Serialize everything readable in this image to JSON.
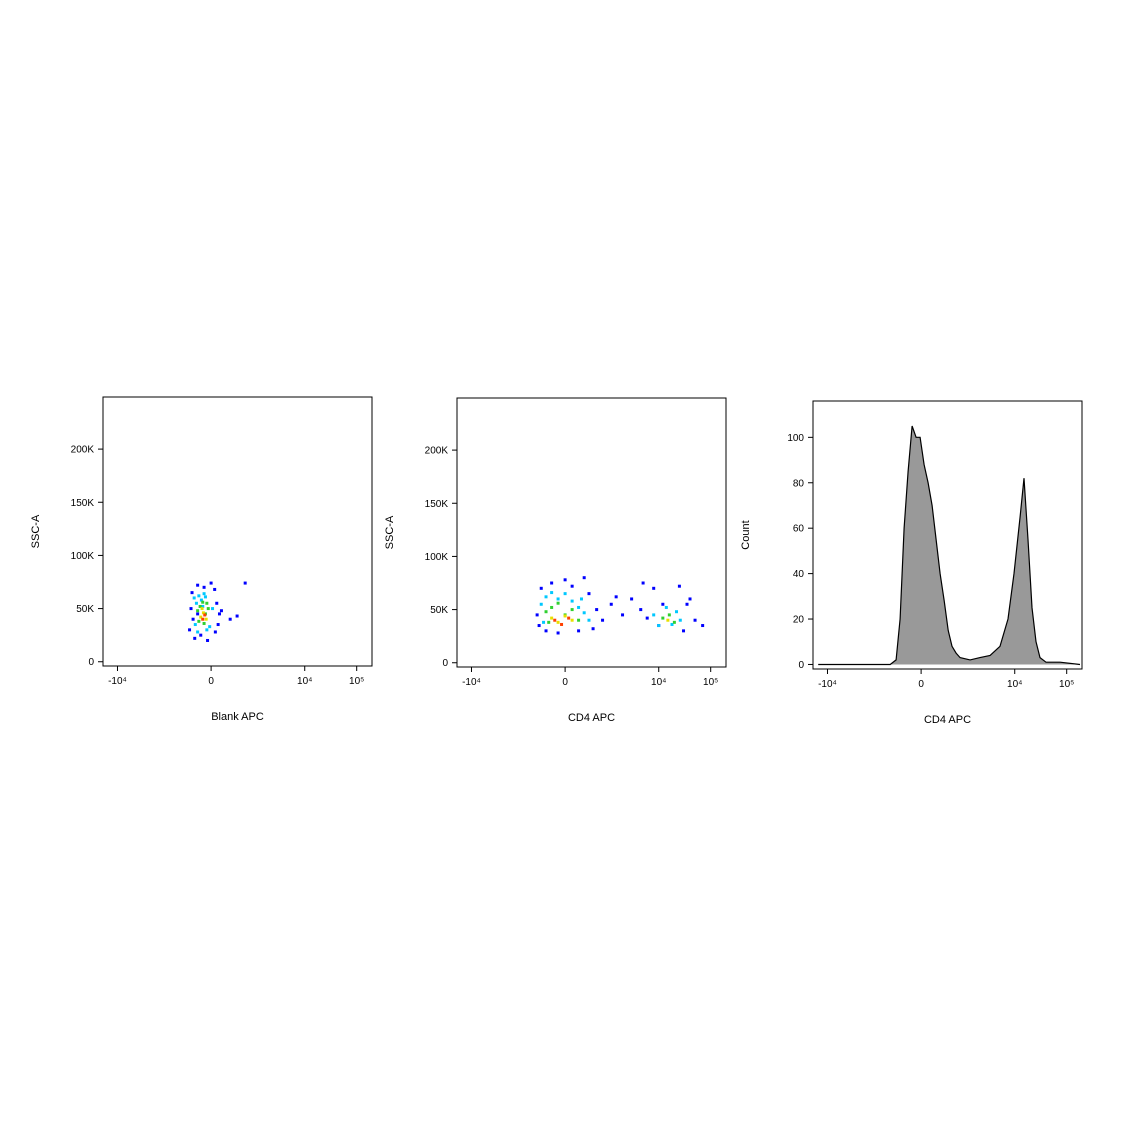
{
  "chart_data": [
    {
      "type": "scatter",
      "xlabel": "Blank APC",
      "ylabel": "SSC-A",
      "xscale": "biexponential",
      "xlim": [
        -19000,
        197000
      ],
      "ylim": [
        -4000,
        249000
      ],
      "xticks": [
        {
          "value": -10000,
          "label": "-10⁴"
        },
        0,
        {
          "value": 10000,
          "label": "10⁴"
        },
        {
          "value": 100000,
          "label": "10⁵"
        }
      ],
      "yticks": [
        0,
        {
          "value": 50000,
          "label": "50K"
        },
        {
          "value": 100000,
          "label": "100K"
        },
        {
          "value": 150000,
          "label": "150K"
        },
        {
          "value": 200000,
          "label": "200K"
        }
      ],
      "series": [
        {
          "color": "#0000ff",
          "x": [
            -350,
            -300,
            -250,
            -200,
            -150,
            -100,
            -50,
            0,
            50,
            100,
            -320,
            -280,
            80,
            120,
            150,
            300,
            450,
            680,
            -200,
            60
          ],
          "y": [
            30000,
            65000,
            22000,
            72000,
            25000,
            70000,
            20000,
            74000,
            68000,
            35000,
            50000,
            40000,
            55000,
            45000,
            48000,
            40000,
            43000,
            74000,
            45000,
            28000
          ]
        },
        {
          "color": "#00c8ff",
          "x": [
            -260,
            -220,
            -180,
            -140,
            -100,
            -60,
            -20,
            20,
            -240,
            -200,
            -120,
            -80
          ],
          "y": [
            60000,
            55000,
            62000,
            58000,
            64000,
            30000,
            33000,
            50000,
            35000,
            28000,
            52000,
            61000
          ]
        },
        {
          "color": "#30d030",
          "x": [
            -200,
            -160,
            -120,
            -80,
            -40,
            -180,
            -100,
            -60
          ],
          "y": [
            48000,
            52000,
            56000,
            45000,
            50000,
            38000,
            36000,
            55000
          ]
        },
        {
          "color": "#e8e000",
          "x": [
            -150,
            -110,
            -70,
            -130
          ],
          "y": [
            42000,
            46000,
            40000,
            50000
          ]
        },
        {
          "color": "#ff4000",
          "x": [
            -120,
            -90
          ],
          "y": [
            40000,
            44000
          ]
        }
      ]
    },
    {
      "type": "scatter",
      "xlabel": "CD4 APC",
      "ylabel": "SSC-A",
      "xscale": "biexponential",
      "xlim": [
        -19000,
        197000
      ],
      "ylim": [
        -4000,
        249000
      ],
      "xticks": [
        {
          "value": -10000,
          "label": "-10⁴"
        },
        0,
        {
          "value": 10000,
          "label": "10⁴"
        },
        {
          "value": 100000,
          "label": "10⁵"
        }
      ],
      "yticks": [
        0,
        {
          "value": 50000,
          "label": "50K"
        },
        {
          "value": 100000,
          "label": "100K"
        },
        {
          "value": 150000,
          "label": "150K"
        },
        {
          "value": 200000,
          "label": "200K"
        }
      ],
      "series": [
        {
          "color": "#0000ff",
          "x": [
            -500,
            -400,
            -300,
            -200,
            -100,
            0,
            100,
            200,
            400,
            600,
            800,
            1200,
            2000,
            3000,
            4500,
            6000,
            8000,
            10000,
            25000,
            30000,
            35000,
            50000,
            70000,
            -450,
            300,
            500,
            1500,
            5000,
            12000,
            40000
          ],
          "y": [
            45000,
            70000,
            30000,
            75000,
            28000,
            78000,
            72000,
            30000,
            65000,
            50000,
            40000,
            55000,
            45000,
            60000,
            50000,
            42000,
            70000,
            35000,
            72000,
            30000,
            55000,
            40000,
            35000,
            35000,
            80000,
            32000,
            62000,
            75000,
            55000,
            60000
          ]
        },
        {
          "color": "#00c8ff",
          "x": [
            -400,
            -300,
            -200,
            -100,
            0,
            100,
            200,
            300,
            400,
            8000,
            10000,
            14000,
            18000,
            22000,
            26000,
            -350,
            250
          ],
          "y": [
            55000,
            62000,
            66000,
            60000,
            65000,
            58000,
            52000,
            47000,
            40000,
            45000,
            35000,
            52000,
            36000,
            48000,
            40000,
            38000,
            60000
          ]
        },
        {
          "color": "#30d030",
          "x": [
            -300,
            -200,
            -100,
            0,
            100,
            200,
            -250,
            12000,
            16000,
            20000
          ],
          "y": [
            48000,
            52000,
            56000,
            45000,
            50000,
            40000,
            38000,
            42000,
            45000,
            38000
          ]
        },
        {
          "color": "#e8e000",
          "x": [
            -200,
            -100,
            0,
            100,
            15000
          ],
          "y": [
            42000,
            38000,
            44000,
            40000,
            40000
          ]
        },
        {
          "color": "#ff4000",
          "x": [
            -150,
            -50,
            50
          ],
          "y": [
            40000,
            36000,
            42000
          ]
        }
      ]
    },
    {
      "type": "area",
      "xlabel": "CD4 APC",
      "ylabel": "Count",
      "xscale": "biexponential",
      "xlim": [
        -19000,
        197000
      ],
      "ylim": [
        -2,
        116
      ],
      "color": "#999999",
      "xticks": [
        {
          "value": -10000,
          "label": "-10⁴"
        },
        0,
        {
          "value": 10000,
          "label": "10⁴"
        },
        {
          "value": 100000,
          "label": "10⁵"
        }
      ],
      "yticks": [
        0,
        20,
        40,
        60,
        80,
        100
      ],
      "x": [
        -15100,
        -582,
        -427,
        -338,
        -261,
        -192,
        -129,
        -70,
        -14,
        42,
        100,
        160,
        226,
        298,
        382,
        478,
        582,
        711,
        860,
        1365,
        2140,
        3350,
        5210,
        7430,
        9700,
        12700,
        15100,
        18000,
        21500,
        25700,
        30700,
        40000,
        74500,
        180000
      ],
      "values": [
        0,
        0,
        2,
        20,
        60,
        85,
        105,
        100,
        100,
        88,
        80,
        70,
        55,
        40,
        28,
        15,
        8,
        5,
        3,
        2,
        3,
        4,
        8,
        20,
        40,
        65,
        82,
        55,
        25,
        10,
        3,
        1,
        1,
        0
      ]
    }
  ]
}
